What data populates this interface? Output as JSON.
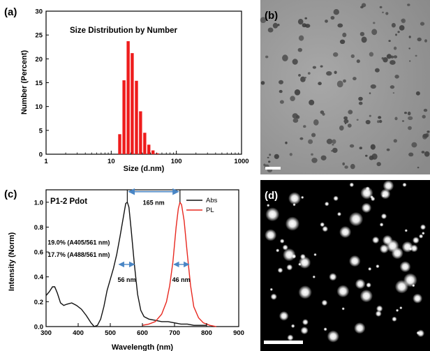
{
  "panels": {
    "a": "(a)",
    "b": "(b)",
    "c": "(c)",
    "d": "(d)"
  },
  "chart_data": [
    {
      "type": "bar",
      "title": "Size Distribution by Number",
      "xlabel": "Size (d.nm)",
      "ylabel": "Number (Percent)",
      "x_scale": "log",
      "xlim": [
        1,
        1000
      ],
      "ylim": [
        0,
        30
      ],
      "x_ticks": [
        "1",
        "10",
        "100",
        "1000"
      ],
      "y_ticks": [
        "0",
        "5",
        "10",
        "15",
        "20",
        "25",
        "30"
      ],
      "x": [
        13.5,
        15.7,
        18.2,
        21.0,
        24.4,
        28.2,
        32.7,
        37.8,
        43.8,
        50.8
      ],
      "values": [
        4.2,
        15.5,
        23.7,
        21.2,
        15.4,
        9.0,
        4.5,
        2.0,
        0.8,
        0.2
      ],
      "color": "#ee1c1c"
    },
    {
      "type": "line",
      "annotation_title": "P1-2 Pdot",
      "xlabel": "Wavelength (nm)",
      "ylabel": "Intensity (Norm)",
      "xlim": [
        300,
        900
      ],
      "ylim": [
        0,
        1.1
      ],
      "x_ticks": [
        "300",
        "400",
        "500",
        "600",
        "700",
        "800",
        "900"
      ],
      "y_ticks": [
        "0.0",
        "0.2",
        "0.4",
        "0.6",
        "0.8",
        "1.0"
      ],
      "series": [
        {
          "name": "Abs",
          "color": "#111111",
          "x": [
            300,
            310,
            320,
            327,
            335,
            345,
            355,
            365,
            380,
            395,
            410,
            425,
            440,
            450,
            460,
            470,
            480,
            490,
            500,
            510,
            520,
            530,
            540,
            548,
            553,
            558,
            565,
            575,
            585,
            595,
            605,
            620,
            640,
            660,
            680,
            700,
            720,
            740,
            760,
            780,
            800
          ],
          "y": [
            0.25,
            0.28,
            0.32,
            0.32,
            0.27,
            0.19,
            0.17,
            0.18,
            0.19,
            0.17,
            0.14,
            0.09,
            0.03,
            0.0,
            0.01,
            0.06,
            0.16,
            0.29,
            0.38,
            0.47,
            0.58,
            0.72,
            0.87,
            0.99,
            1.0,
            0.96,
            0.78,
            0.5,
            0.26,
            0.13,
            0.08,
            0.06,
            0.05,
            0.04,
            0.04,
            0.03,
            0.02,
            0.02,
            0.01,
            0.01,
            0.01
          ]
        },
        {
          "name": "PL",
          "color": "#e8281f",
          "x": [
            600,
            620,
            640,
            660,
            675,
            685,
            695,
            705,
            712,
            717,
            722,
            730,
            740,
            750,
            760,
            775,
            790,
            810,
            830
          ],
          "y": [
            0.01,
            0.02,
            0.04,
            0.1,
            0.2,
            0.33,
            0.52,
            0.8,
            0.95,
            1.0,
            0.98,
            0.85,
            0.58,
            0.33,
            0.16,
            0.07,
            0.03,
            0.01,
            0.0
          ]
        }
      ],
      "legend_position": "top-right",
      "annotations": {
        "peak_gap": "165 nm",
        "abs_fwhm": "56 nm",
        "pl_fwhm": "46 nm",
        "ratio1": "19.0% (A405/561 nm)",
        "ratio2": "17.7% (A488/561 nm)"
      }
    }
  ],
  "images": {
    "b": {
      "kind": "micrograph",
      "background": "#9a9a9a"
    },
    "d": {
      "kind": "fluorescence",
      "background": "#000000"
    }
  }
}
